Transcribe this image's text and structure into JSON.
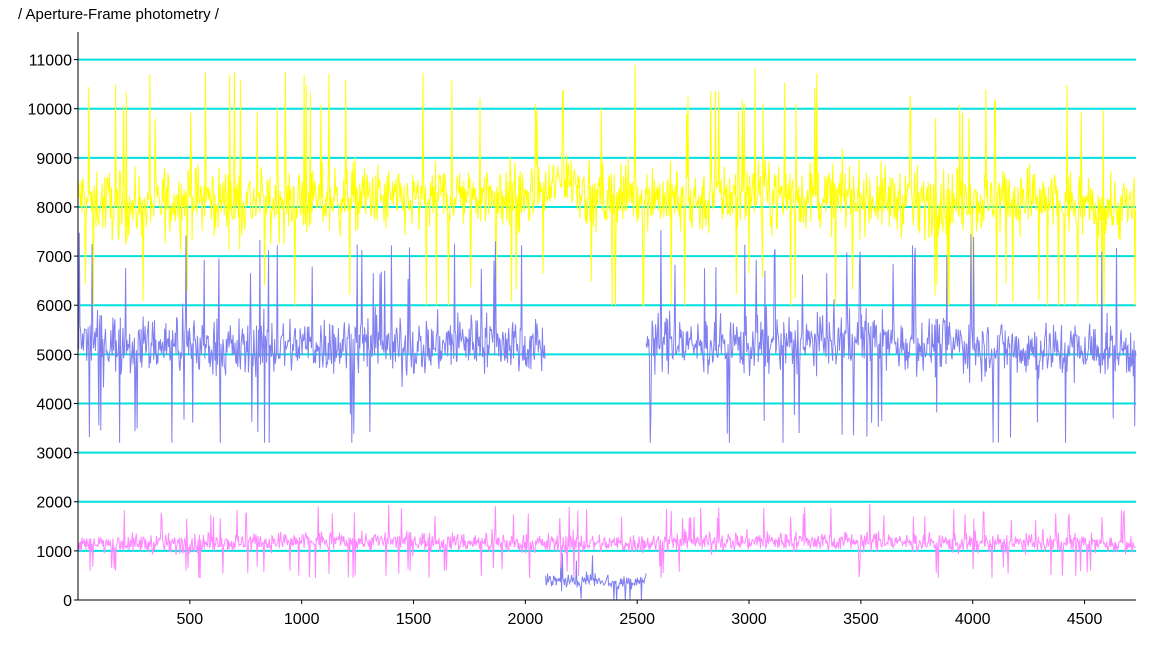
{
  "chart_data": {
    "type": "line",
    "title": "/ Aperture-Frame photometry /",
    "xlabel": "",
    "ylabel": "",
    "xlim": [
      0,
      4730
    ],
    "ylim": [
      0,
      11500
    ],
    "x_ticks": [
      500,
      1000,
      1500,
      2000,
      2500,
      3000,
      3500,
      4000,
      4500
    ],
    "y_ticks": [
      0,
      1000,
      2000,
      3000,
      4000,
      5000,
      6000,
      7000,
      8000,
      9000,
      10000,
      11000
    ],
    "grid": "horizontal",
    "grid_color": "#00e0e0",
    "legend": "none",
    "series": [
      {
        "color": "#ffff00",
        "segments": [
          [
            0,
            4730
          ]
        ],
        "x": [
          0,
          250,
          500,
          750,
          1000,
          1250,
          1500,
          1750,
          2000,
          2100,
          2200,
          2300,
          2400,
          2500,
          2600,
          2750,
          3000,
          3250,
          3500,
          3750,
          4000,
          4250,
          4500,
          4730
        ],
        "y": [
          8200,
          8000,
          8200,
          8100,
          8100,
          8200,
          8100,
          8300,
          8200,
          8300,
          8700,
          8100,
          8200,
          8300,
          8200,
          8100,
          8300,
          8200,
          8200,
          8100,
          8100,
          8200,
          8000,
          8000
        ],
        "noise_range": [
          6000,
          11300
        ]
      },
      {
        "color": "#8080f0",
        "segments": [
          [
            0,
            2090
          ],
          [
            2540,
            4730
          ]
        ],
        "x": [
          0,
          250,
          500,
          750,
          1000,
          1250,
          1500,
          1750,
          2000,
          2090,
          2540,
          2750,
          3000,
          3250,
          3500,
          3750,
          4000,
          4250,
          4500,
          4730
        ],
        "y": [
          5300,
          5200,
          5200,
          5100,
          5200,
          5200,
          5100,
          5300,
          5200,
          5100,
          5300,
          5200,
          5200,
          5200,
          5300,
          5200,
          5200,
          5100,
          5100,
          5100
        ],
        "noise_range": [
          3200,
          7800
        ]
      },
      {
        "color": "#8080f0",
        "segments": [
          [
            2090,
            2540
          ]
        ],
        "x": [
          2090,
          2200,
          2300,
          2400,
          2540
        ],
        "y": [
          400,
          350,
          450,
          350,
          400
        ],
        "noise_range": [
          0,
          1200
        ]
      },
      {
        "color": "#ff88ff",
        "segments": [
          [
            0,
            4730
          ]
        ],
        "x": [
          0,
          500,
          1000,
          1500,
          2000,
          2500,
          3000,
          3500,
          4000,
          4500,
          4730
        ],
        "y": [
          1150,
          1150,
          1200,
          1200,
          1150,
          1150,
          1200,
          1200,
          1150,
          1150,
          1150
        ],
        "noise_range": [
          450,
          2000
        ]
      }
    ]
  }
}
